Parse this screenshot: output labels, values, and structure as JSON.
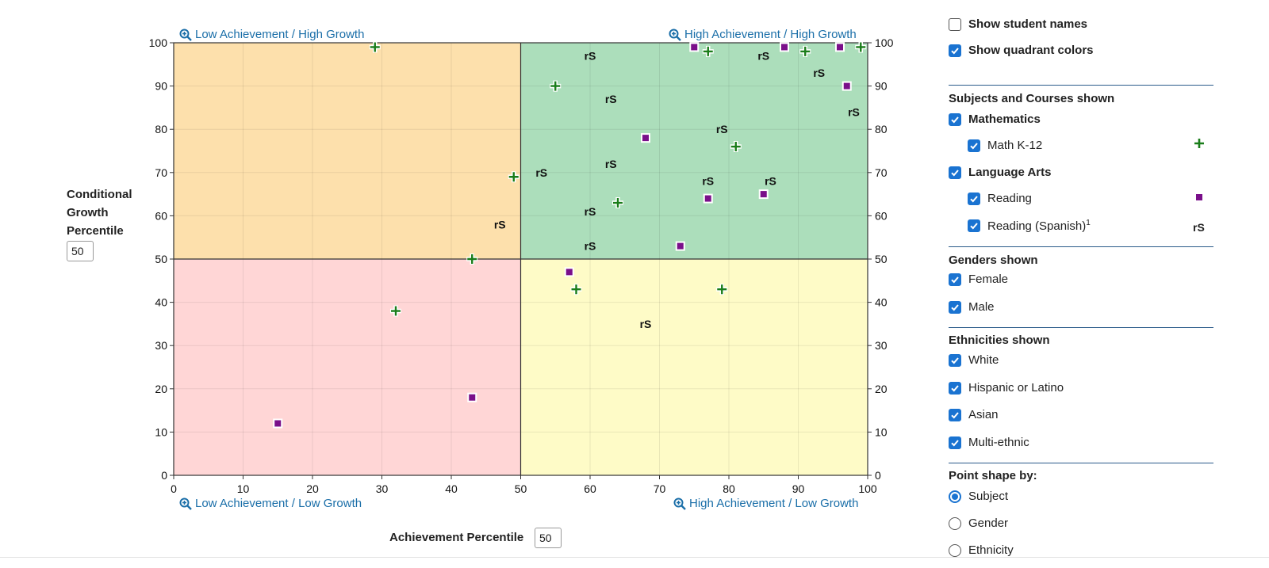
{
  "chart_data": {
    "type": "scatter",
    "xlabel": "Achievement Percentile",
    "ylabel": "Conditional Growth Percentile",
    "xlim": [
      0,
      100
    ],
    "ylim": [
      0,
      100
    ],
    "xticks": [
      0,
      10,
      20,
      30,
      40,
      50,
      60,
      70,
      80,
      90,
      100
    ],
    "yticks": [
      0,
      10,
      20,
      30,
      40,
      50,
      60,
      70,
      80,
      90,
      100
    ],
    "grid": true,
    "quadrant_split": {
      "x": 50,
      "y": 50
    },
    "quadrant_colors": {
      "top_left": "#fde0ac",
      "top_right": "#acdebb",
      "bottom_left": "#ffd6d6",
      "bottom_right": "#fefbc7"
    },
    "quadrant_labels": {
      "top_left": "Low Achievement / High Growth",
      "top_right": "High Achievement / High Growth",
      "bottom_left": "Low Achievement / Low Growth",
      "bottom_right": "High Achievement / Low Growth"
    },
    "series": [
      {
        "name": "Math K-12",
        "marker": "plus",
        "color": "#1a7d1a",
        "points": [
          [
            29,
            99
          ],
          [
            77,
            98
          ],
          [
            91,
            98
          ],
          [
            99,
            99
          ],
          [
            55,
            90
          ],
          [
            81,
            76
          ],
          [
            49,
            69
          ],
          [
            64,
            63
          ],
          [
            43,
            50
          ],
          [
            32,
            38
          ],
          [
            58,
            43
          ],
          [
            79,
            43
          ]
        ]
      },
      {
        "name": "Reading",
        "marker": "square",
        "color": "#7a0f8a",
        "points": [
          [
            75,
            99
          ],
          [
            88,
            99
          ],
          [
            96,
            99
          ],
          [
            97,
            90
          ],
          [
            68,
            78
          ],
          [
            77,
            64
          ],
          [
            85,
            65
          ],
          [
            73,
            53
          ],
          [
            57,
            47
          ],
          [
            43,
            18
          ],
          [
            15,
            12
          ]
        ]
      },
      {
        "name": "Reading (Spanish)",
        "marker": "rS",
        "color": "#111111",
        "points": [
          [
            60,
            97
          ],
          [
            85,
            97
          ],
          [
            93,
            93
          ],
          [
            63,
            87
          ],
          [
            98,
            84
          ],
          [
            79,
            80
          ],
          [
            53,
            70
          ],
          [
            63,
            72
          ],
          [
            77,
            68
          ],
          [
            86,
            68
          ],
          [
            60,
            61
          ],
          [
            47,
            58
          ],
          [
            60,
            53
          ],
          [
            68,
            35
          ]
        ]
      }
    ]
  },
  "controls": {
    "growth_input_value": "50",
    "achievement_input_value": "50"
  },
  "panel": {
    "show_student_names": {
      "label": "Show student names",
      "checked": false
    },
    "show_quadrant_colors": {
      "label": "Show quadrant colors",
      "checked": true
    },
    "subjects_heading": "Subjects and Courses shown",
    "mathematics": {
      "label": "Mathematics",
      "checked": true
    },
    "math_k12": {
      "label": "Math K-12",
      "checked": true,
      "symbol": "+"
    },
    "language_arts": {
      "label": "Language Arts",
      "checked": true
    },
    "reading": {
      "label": "Reading",
      "checked": true,
      "symbol": "■"
    },
    "reading_spanish": {
      "label": "Reading (Spanish)",
      "footnote": "1",
      "checked": true,
      "symbol": "rS"
    },
    "genders_heading": "Genders shown",
    "female": {
      "label": "Female",
      "checked": true
    },
    "male": {
      "label": "Male",
      "checked": true
    },
    "ethnicities_heading": "Ethnicities shown",
    "white": {
      "label": "White",
      "checked": true
    },
    "hispanic": {
      "label": "Hispanic or Latino",
      "checked": true
    },
    "asian": {
      "label": "Asian",
      "checked": true
    },
    "multiethnic": {
      "label": "Multi-ethnic",
      "checked": true
    },
    "point_shape_heading": "Point shape by:",
    "shape_subject": {
      "label": "Subject",
      "selected": true
    },
    "shape_gender": {
      "label": "Gender",
      "selected": false
    },
    "shape_ethnicity": {
      "label": "Ethnicity",
      "selected": false
    }
  },
  "icons": {
    "zoom": "magnifier-plus-icon",
    "check": "checkmark-icon"
  }
}
